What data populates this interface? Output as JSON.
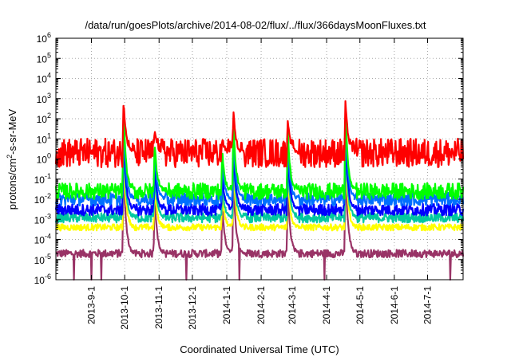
{
  "chart_data": {
    "type": "line",
    "title": "/data/run/goesPlots/archive/2014-08-02/flux/../flux/366daysMoonFluxes.txt",
    "xlabel": "Coordinated Universal Time (UTC)",
    "ylabel": {
      "base": "protons/cm",
      "sup": "2",
      "rest": "-s-sr-MeV"
    },
    "y_scale": "log",
    "ylim": [
      1e-06,
      1000000.0
    ],
    "xlim": [
      "2013-07-31",
      "2014-08-02"
    ],
    "grid": true,
    "x_ticks": [
      "2013-9-1",
      "2013-10-1",
      "2013-11-1",
      "2013-12-1",
      "2014-1-1",
      "2014-2-1",
      "2014-3-1",
      "2014-4-1",
      "2014-5-1",
      "2014-6-1",
      "2014-7-1"
    ],
    "y_ticks": [
      {
        "exp": -6,
        "base": "10",
        "sup": "-6"
      },
      {
        "exp": -5,
        "base": "10",
        "sup": "-5"
      },
      {
        "exp": -4,
        "base": "10",
        "sup": "-4"
      },
      {
        "exp": -3,
        "base": "10",
        "sup": "-3"
      },
      {
        "exp": -2,
        "base": "10",
        "sup": "-2"
      },
      {
        "exp": -1,
        "base": "10",
        "sup": "-1"
      },
      {
        "exp": 0,
        "base": "10",
        "sup": "0"
      },
      {
        "exp": 1,
        "base": "10",
        "sup": "1"
      },
      {
        "exp": 2,
        "base": "10",
        "sup": "2"
      },
      {
        "exp": 3,
        "base": "10",
        "sup": "3"
      },
      {
        "exp": 4,
        "base": "10",
        "sup": "4"
      },
      {
        "exp": 5,
        "base": "10",
        "sup": "5"
      },
      {
        "exp": 6,
        "base": "10",
        "sup": "6"
      }
    ],
    "series": [
      {
        "color": "#993366",
        "baseline": 2e-05,
        "noise_decades": 0.12
      },
      {
        "color": "#ffff00",
        "baseline": 0.0004,
        "noise_decades": 0.1
      },
      {
        "color": "#00c8a0",
        "baseline": 0.0012,
        "noise_decades": 0.15
      },
      {
        "color": "#0000ff",
        "baseline": 0.003,
        "noise_decades": 0.18
      },
      {
        "color": "#0070ff",
        "baseline": 0.01,
        "noise_decades": 0.2
      },
      {
        "color": "#00ff00",
        "baseline": 0.025,
        "noise_decades": 0.25
      },
      {
        "color": "#ff0000",
        "baseline": 2,
        "noise_decades": 0.45
      }
    ],
    "events": [
      {
        "date": "2013-09-30",
        "peak": 1000
      },
      {
        "date": "2014-01-07",
        "peak": 250
      },
      {
        "date": "2014-02-25",
        "peak": 100
      },
      {
        "date": "2014-04-18",
        "peak": 1000
      },
      {
        "date": "2013-10-28",
        "peak": 30
      },
      {
        "date": "2013-12-28",
        "peak": 8
      }
    ]
  }
}
